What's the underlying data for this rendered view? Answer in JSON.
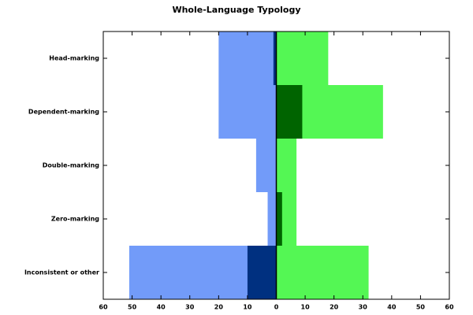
{
  "chart_data": {
    "type": "diverging-bar",
    "title": "Whole-Language Typology",
    "categories": [
      "Head-marking",
      "Dependent-marking",
      "Double-marking",
      "Zero-marking",
      "Inconsistent or other"
    ],
    "series": [
      {
        "color": "#729bf9",
        "values": [
          -20,
          -20,
          -7,
          -3,
          -51
        ]
      },
      {
        "color": "#54f754",
        "values": [
          18,
          37,
          7,
          7,
          32
        ]
      },
      {
        "color": "#003080",
        "values": [
          -1,
          0,
          0,
          0,
          -10
        ]
      },
      {
        "color": "#006400",
        "values": [
          0,
          9,
          0,
          2,
          0
        ]
      }
    ],
    "xlim": [
      -60,
      60
    ],
    "xticks": [
      {
        "value": -60,
        "label": "60"
      },
      {
        "value": -50,
        "label": "50"
      },
      {
        "value": -40,
        "label": "40"
      },
      {
        "value": -30,
        "label": "30"
      },
      {
        "value": -20,
        "label": "20"
      },
      {
        "value": -10,
        "label": "10"
      },
      0,
      10,
      20,
      30,
      40,
      50,
      60
    ]
  }
}
